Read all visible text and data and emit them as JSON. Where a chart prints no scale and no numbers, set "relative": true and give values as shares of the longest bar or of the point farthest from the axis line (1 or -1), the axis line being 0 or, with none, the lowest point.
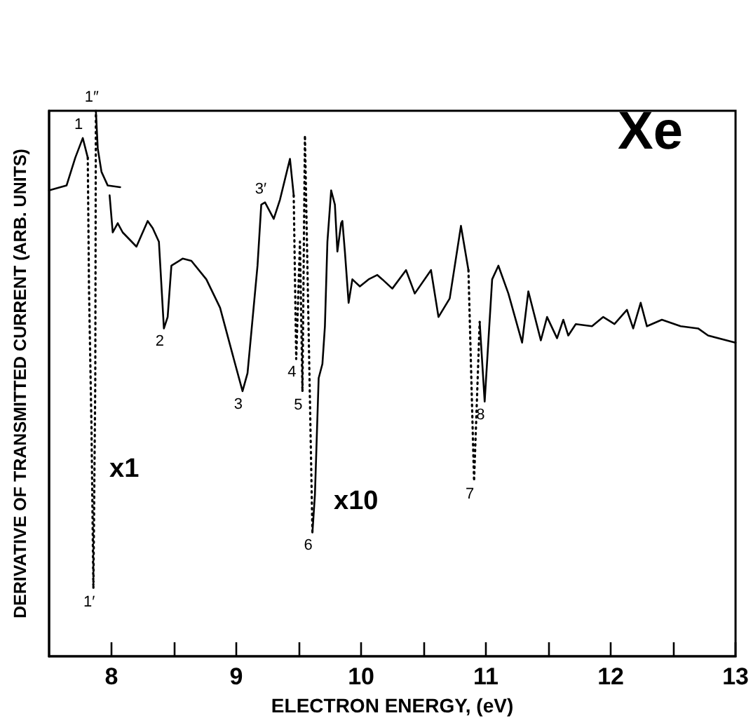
{
  "chart_data": {
    "type": "line",
    "title": "Xe",
    "xlabel": "ELECTRON ENERGY, (eV)",
    "ylabel": "DERIVATIVE OF TRANSMITTED CURRENT (ARB. UNITS)",
    "relative": true,
    "marker": "none",
    "xlim": [
      7.5,
      13
    ],
    "xticks": [
      8,
      {
        "value": 8.5,
        "label": null
      },
      9,
      {
        "value": 9.5,
        "label": null
      },
      10,
      {
        "value": 10.5,
        "label": null
      },
      11,
      {
        "value": 11.5,
        "label": null
      },
      12,
      {
        "value": 12.5,
        "label": null
      },
      13
    ],
    "series": [
      {
        "color": "#000000",
        "line_style": "solid",
        "x": [
          7.5,
          7.64,
          7.71,
          7.77,
          7.81
        ],
        "values": [
          0.854,
          0.863,
          0.914,
          0.95,
          0.914
        ]
      },
      {
        "color": "#000000",
        "line_style": "dotted",
        "x": [
          7.81,
          7.82,
          7.84,
          7.855,
          7.87,
          7.875
        ],
        "values": [
          0.914,
          0.673,
          0.416,
          0.124,
          0.5,
          1.0
        ]
      },
      {
        "color": "#000000",
        "line_style": "solid",
        "x": [
          7.875,
          7.89,
          7.92,
          7.97,
          8.07
        ],
        "values": [
          1.0,
          0.931,
          0.888,
          0.863,
          0.86
        ]
      },
      {
        "color": "#000000",
        "line_style": "solid",
        "x": [
          7.985,
          8.01,
          8.05,
          8.09,
          8.2,
          8.29,
          8.33,
          8.38,
          8.42,
          8.45,
          8.48,
          8.57,
          8.64,
          8.76,
          8.87,
          8.98,
          9.05,
          9.09,
          9.17,
          9.2,
          9.23,
          9.3,
          9.35,
          9.43,
          9.46
        ],
        "values": [
          0.845,
          0.777,
          0.794,
          0.777,
          0.751,
          0.798,
          0.785,
          0.76,
          0.601,
          0.622,
          0.716,
          0.729,
          0.725,
          0.691,
          0.639,
          0.545,
          0.486,
          0.519,
          0.716,
          0.828,
          0.832,
          0.802,
          0.837,
          0.912,
          0.845
        ]
      },
      {
        "color": "#000000",
        "line_style": "dotted",
        "x": [
          9.46,
          9.48,
          9.51,
          9.53,
          9.55,
          9.61
        ],
        "values": [
          0.845,
          0.545,
          0.76,
          0.485,
          0.955,
          0.227
        ]
      },
      {
        "color": "#000000",
        "line_style": "solid",
        "x": [
          9.61,
          9.63,
          9.66,
          9.69,
          9.71,
          9.73,
          9.76,
          9.79,
          9.81,
          9.84,
          9.85,
          9.87,
          9.9,
          9.93,
          9.99,
          10.06,
          10.13,
          10.17,
          10.25,
          10.36,
          10.43,
          10.56,
          10.62,
          10.71,
          10.8,
          10.86
        ],
        "values": [
          0.227,
          0.296,
          0.51,
          0.536,
          0.605,
          0.76,
          0.854,
          0.828,
          0.742,
          0.794,
          0.798,
          0.742,
          0.648,
          0.691,
          0.678,
          0.691,
          0.699,
          0.691,
          0.674,
          0.708,
          0.665,
          0.708,
          0.622,
          0.656,
          0.789,
          0.708
        ]
      },
      {
        "color": "#000000",
        "line_style": "dotted",
        "x": [
          10.86,
          10.905,
          10.95
        ],
        "values": [
          0.708,
          0.321,
          0.613
        ]
      },
      {
        "color": "#000000",
        "line_style": "solid",
        "x": [
          10.95,
          10.99,
          11.05,
          11.1,
          11.18,
          11.29,
          11.34,
          11.44,
          11.49,
          11.57,
          11.62,
          11.66,
          11.72,
          11.85,
          11.94,
          12.03,
          12.13,
          12.18,
          12.24,
          12.29,
          12.41,
          12.56,
          12.7,
          12.78,
          13.0
        ],
        "values": [
          0.613,
          0.467,
          0.691,
          0.716,
          0.665,
          0.575,
          0.669,
          0.579,
          0.622,
          0.583,
          0.617,
          0.588,
          0.609,
          0.605,
          0.622,
          0.609,
          0.635,
          0.601,
          0.648,
          0.605,
          0.617,
          0.605,
          0.601,
          0.588,
          0.575
        ]
      }
    ],
    "annotations": [
      {
        "text": "1",
        "x": 7.77,
        "y": 0.95
      },
      {
        "text": "1″",
        "x": 7.875,
        "y": 1.0
      },
      {
        "text": "1′",
        "x": 7.855,
        "y": 0.124
      },
      {
        "text": "2",
        "x": 8.42,
        "y": 0.601
      },
      {
        "text": "3",
        "x": 9.05,
        "y": 0.486
      },
      {
        "text": "3′",
        "x": 9.23,
        "y": 0.832
      },
      {
        "text": "4",
        "x": 9.48,
        "y": 0.545
      },
      {
        "text": "5",
        "x": 9.53,
        "y": 0.485
      },
      {
        "text": "6",
        "x": 9.61,
        "y": 0.227
      },
      {
        "text": "7",
        "x": 10.905,
        "y": 0.321
      },
      {
        "text": "8",
        "x": 10.99,
        "y": 0.467
      },
      "x1",
      "x10"
    ]
  }
}
